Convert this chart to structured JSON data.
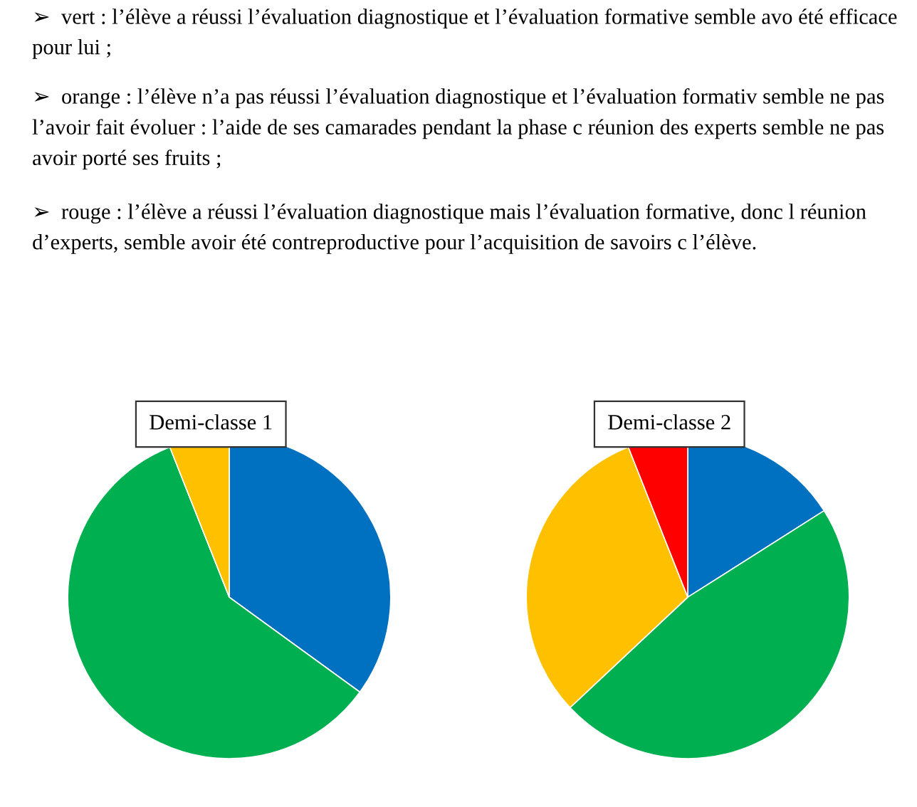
{
  "chart_data": [
    {
      "type": "pie",
      "title": "Demi-classe 1",
      "categories": [
        null,
        null,
        null
      ],
      "values": [
        35,
        59,
        6
      ],
      "colors": [
        "#0070c0",
        "#00b050",
        "#ffc000"
      ],
      "annotations": [
        "➢  vert : l’élève a réussi l’évaluation diagnostique et l’évaluation formative semble avo été efficace pour lui ;",
        "➢  orange : l’élève n’a pas réussi l’évaluation diagnostique et l’évaluation formativ semble ne pas l’avoir fait évoluer : l’aide de ses camarades pendant la phase c réunion des experts semble ne pas avoir porté ses fruits ;",
        "➢  rouge : l’élève a réussi l’évaluation diagnostique mais l’évaluation formative, donc l réunion d’experts, semble avoir été contreproductive pour l’acquisition de savoirs c l’élève."
      ]
    },
    {
      "type": "pie",
      "title": "Demi-classe 2",
      "categories": [
        null,
        null,
        null,
        null
      ],
      "values": [
        16,
        47,
        31,
        6
      ],
      "colors": [
        "#0070c0",
        "#00b050",
        "#ffc000",
        "#ff0000"
      ]
    }
  ]
}
